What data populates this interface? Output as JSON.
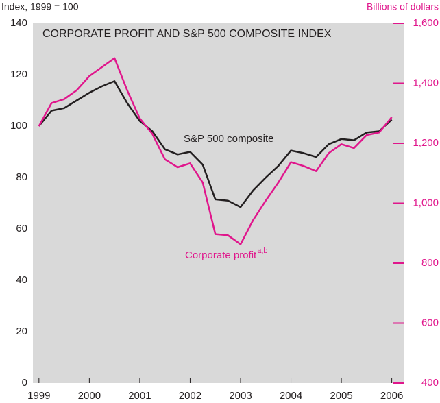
{
  "chart_data": {
    "type": "line",
    "title": "CORPORATE PROFIT AND S&P 500 COMPOSITE INDEX",
    "y_label": "Index, 1999 = 100",
    "y2_label": "Billions of dollars",
    "annotations": [
      {
        "text": "S&P 500 composite"
      },
      {
        "text": "Corporate profit",
        "superscript": "a,b"
      }
    ],
    "x": [
      1999,
      1999.25,
      1999.5,
      1999.75,
      2000,
      2000.25,
      2000.5,
      2000.75,
      2001,
      2001.25,
      2001.5,
      2001.75,
      2002,
      2002.25,
      2002.5,
      2002.75,
      2003,
      2003.25,
      2003.5,
      2003.75,
      2004,
      2004.25,
      2004.5,
      2004.75,
      2005,
      2005.25,
      2005.5,
      2005.75,
      2006
    ],
    "series": [
      {
        "name": "S&P 500 composite",
        "color": "#231f20",
        "axis": "y",
        "values": [
          100,
          106,
          107,
          110,
          113,
          115.5,
          117.5,
          109,
          102,
          98,
          91,
          89,
          90,
          85,
          71.5,
          71,
          68.5,
          75,
          80,
          84.5,
          90.5,
          89.5,
          88,
          93,
          95,
          94.5,
          97.5,
          98,
          102.5
        ]
      },
      {
        "name": "Corporate profit",
        "color": "#e0168c",
        "axis": "y2",
        "values": [
          1257,
          1334,
          1347,
          1377,
          1424,
          1454,
          1484,
          1377,
          1283,
          1231,
          1146,
          1120,
          1133,
          1069,
          897,
          893,
          863,
          944,
          1009,
          1069,
          1137,
          1124,
          1107,
          1167,
          1197,
          1184,
          1227,
          1236,
          1287
        ]
      }
    ],
    "xlim": [
      1998.88,
      2006.25
    ],
    "xticks": [
      1999,
      2000,
      2001,
      2002,
      2003,
      2004,
      2005,
      2006
    ],
    "ylim": [
      0,
      140
    ],
    "yticks": [
      0,
      20,
      40,
      60,
      80,
      100,
      120,
      140
    ],
    "y2lim": [
      400,
      1600
    ],
    "y2ticks": [
      400,
      600,
      800,
      {
        "value": 1000,
        "label": "1,000"
      },
      {
        "value": 1200,
        "label": "1,200"
      },
      {
        "value": 1400,
        "label": "1,400"
      },
      {
        "value": 1600,
        "label": "1,600"
      }
    ],
    "y2color": "#e0168c",
    "background": "#d9d9d9"
  }
}
